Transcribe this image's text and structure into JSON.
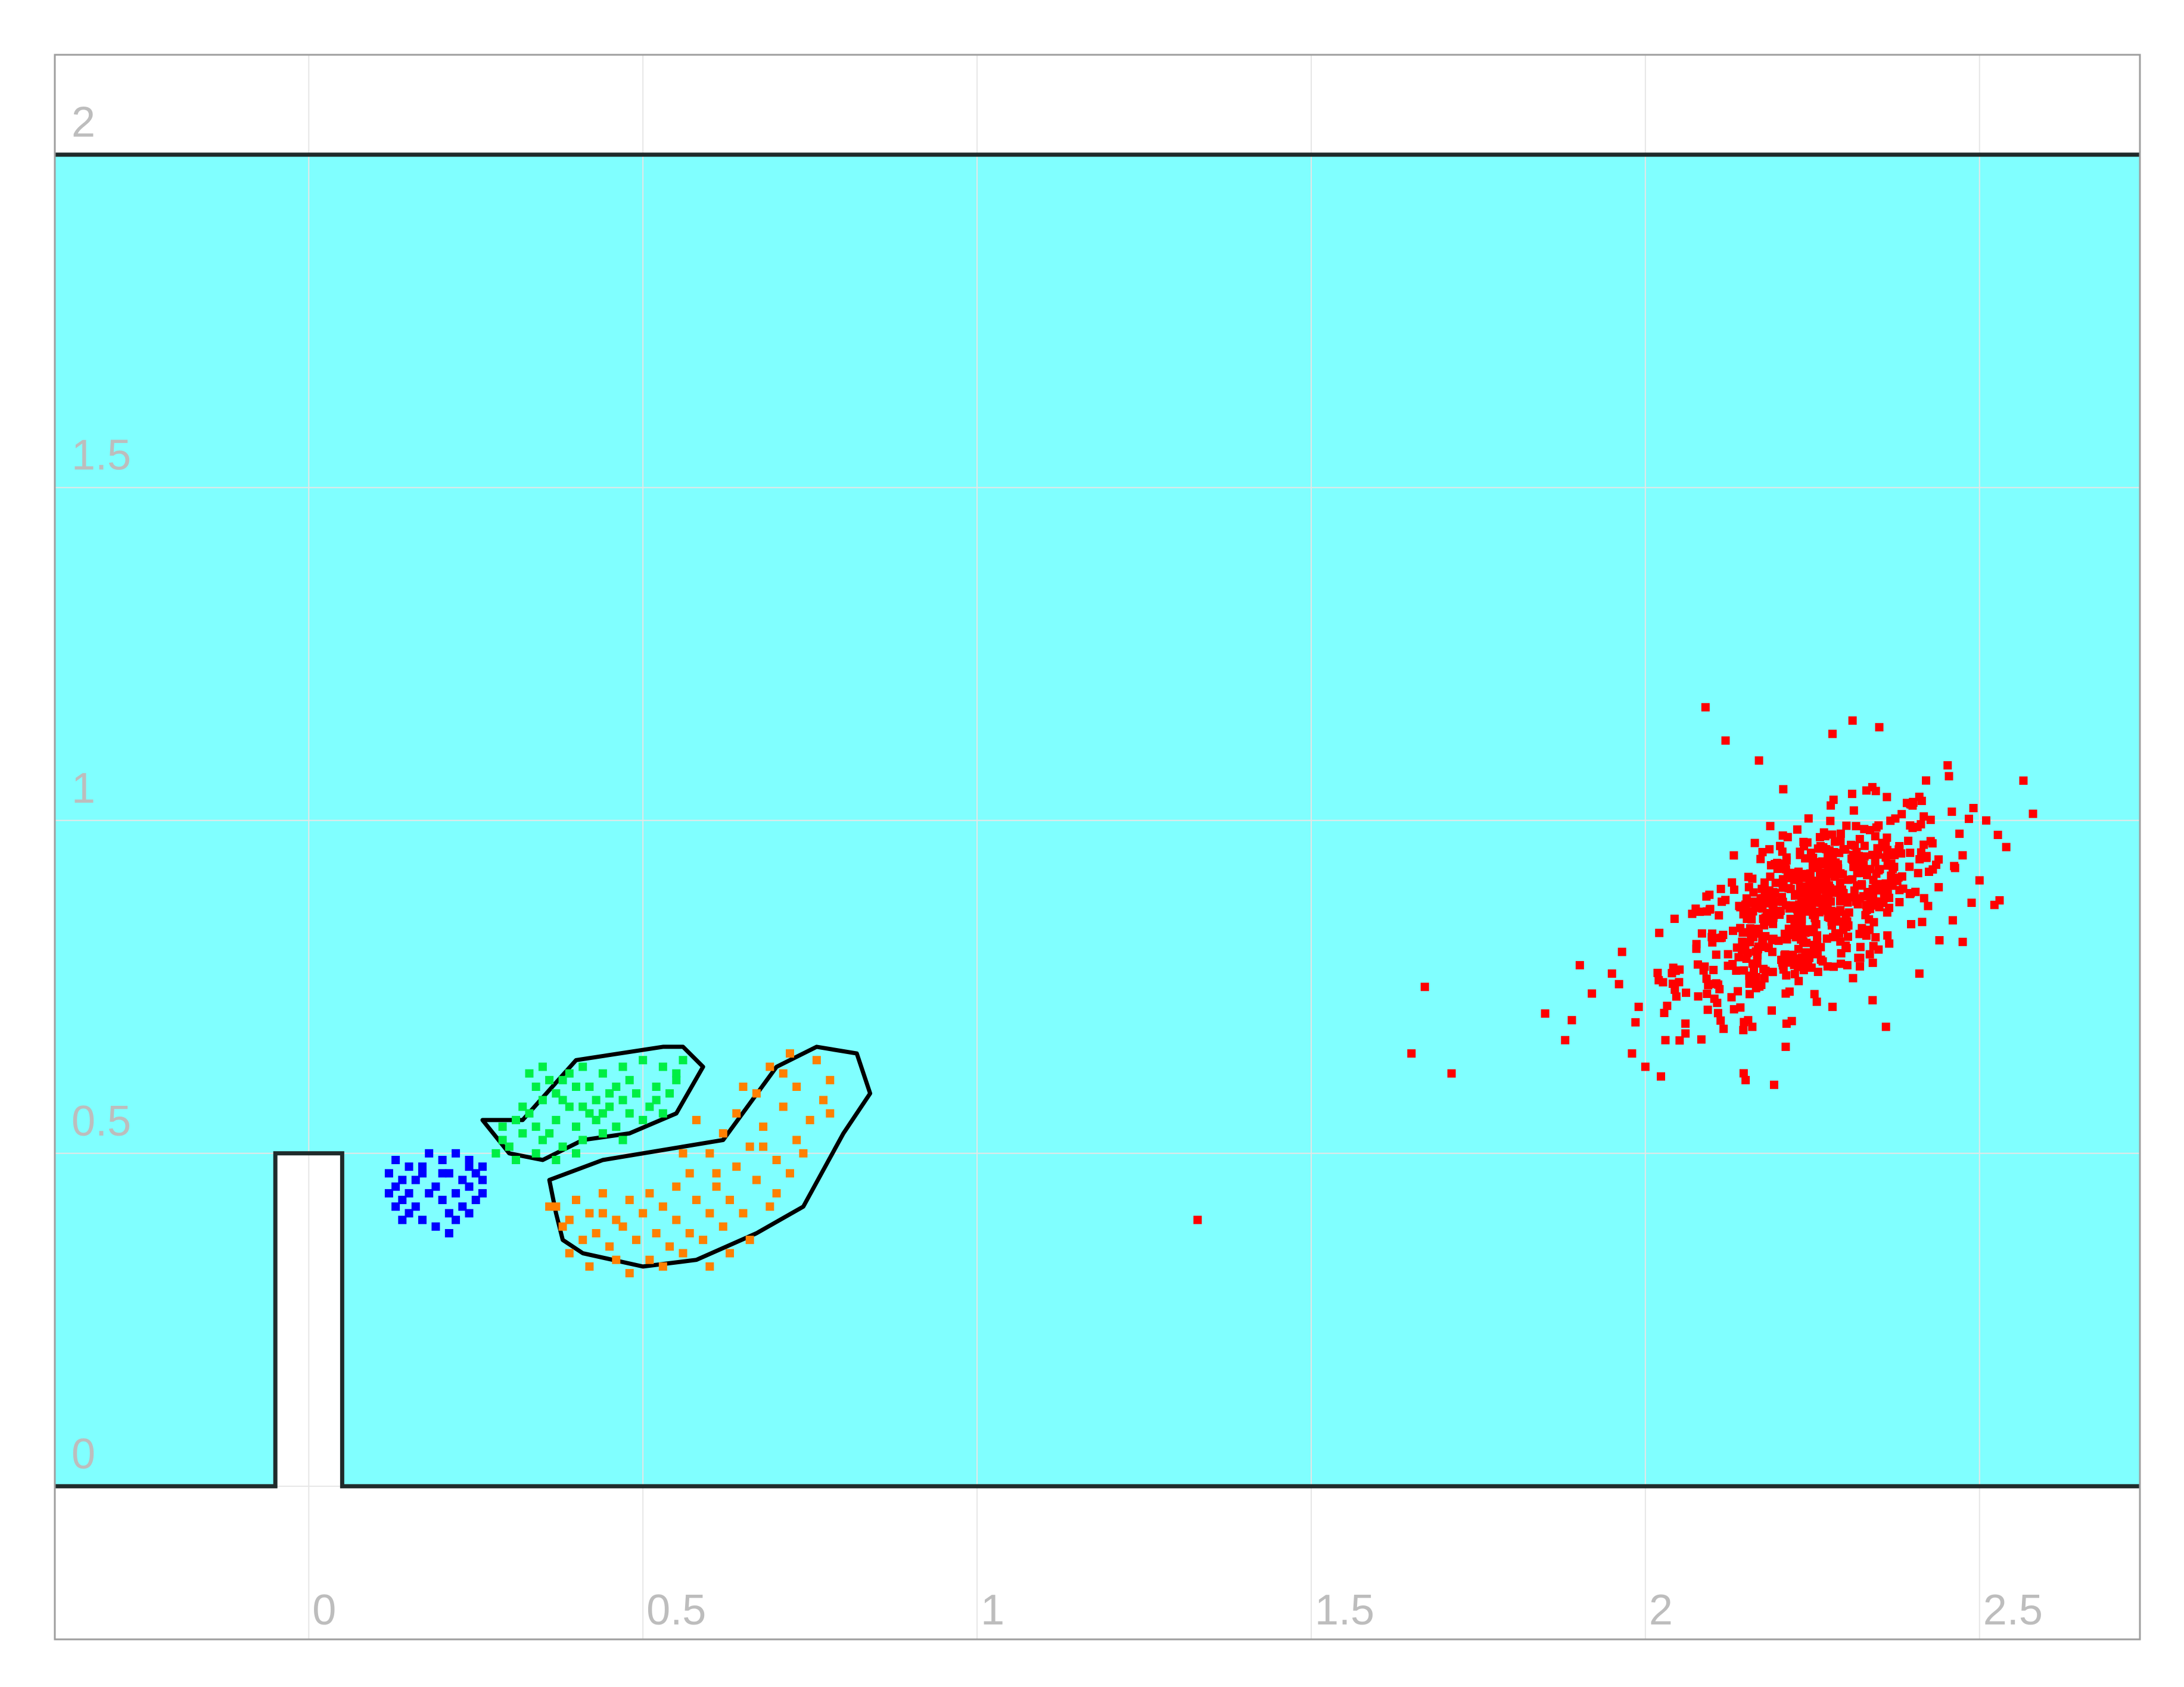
{
  "chart_data": {
    "type": "scatter",
    "title": "",
    "xlabel": "",
    "ylabel": "",
    "xlim": [
      -0.38,
      2.74
    ],
    "ylim": [
      -0.23,
      2.15
    ],
    "grid": true,
    "x_ticks": [
      0,
      0.5,
      1,
      1.5,
      2,
      2.5
    ],
    "x_tick_labels": [
      "0",
      "0.5",
      "1",
      "1.5",
      "2",
      "2.5"
    ],
    "y_ticks": [
      0,
      0.5,
      1,
      1.5,
      2
    ],
    "y_tick_labels": [
      "0",
      "0.5",
      "1",
      "1.5",
      "2"
    ],
    "domain": {
      "x": [
        -0.38,
        2.74
      ],
      "y": [
        0,
        2
      ],
      "fill_color": "#80ffff"
    },
    "obstacle": {
      "x": [
        -0.05,
        0.05
      ],
      "y": [
        0,
        0.5
      ],
      "fill_color": "#ffffff"
    },
    "series": [
      {
        "color": "#0000ff",
        "marker": "square",
        "points": [
          [
            0.13,
            0.49
          ],
          [
            0.15,
            0.48
          ],
          [
            0.18,
            0.5
          ],
          [
            0.2,
            0.49
          ],
          [
            0.22,
            0.5
          ],
          [
            0.24,
            0.49
          ],
          [
            0.26,
            0.48
          ],
          [
            0.12,
            0.47
          ],
          [
            0.14,
            0.46
          ],
          [
            0.17,
            0.47
          ],
          [
            0.21,
            0.47
          ],
          [
            0.23,
            0.46
          ],
          [
            0.25,
            0.47
          ],
          [
            0.13,
            0.45
          ],
          [
            0.15,
            0.44
          ],
          [
            0.19,
            0.45
          ],
          [
            0.22,
            0.44
          ],
          [
            0.24,
            0.45
          ],
          [
            0.26,
            0.44
          ],
          [
            0.14,
            0.43
          ],
          [
            0.16,
            0.42
          ],
          [
            0.2,
            0.43
          ],
          [
            0.23,
            0.42
          ],
          [
            0.25,
            0.43
          ],
          [
            0.15,
            0.41
          ],
          [
            0.17,
            0.4
          ],
          [
            0.21,
            0.41
          ],
          [
            0.24,
            0.41
          ],
          [
            0.13,
            0.42
          ],
          [
            0.19,
            0.39
          ],
          [
            0.22,
            0.4
          ],
          [
            0.16,
            0.46
          ],
          [
            0.18,
            0.44
          ],
          [
            0.12,
            0.44
          ],
          [
            0.26,
            0.46
          ],
          [
            0.21,
            0.38
          ],
          [
            0.14,
            0.4
          ],
          [
            0.24,
            0.48
          ],
          [
            0.17,
            0.48
          ],
          [
            0.2,
            0.47
          ]
        ]
      },
      {
        "color": "#00ee44",
        "marker": "square",
        "points": [
          [
            0.33,
            0.62
          ],
          [
            0.35,
            0.63
          ],
          [
            0.38,
            0.61
          ],
          [
            0.41,
            0.63
          ],
          [
            0.44,
            0.62
          ],
          [
            0.47,
            0.63
          ],
          [
            0.5,
            0.64
          ],
          [
            0.53,
            0.63
          ],
          [
            0.55,
            0.62
          ],
          [
            0.56,
            0.64
          ],
          [
            0.34,
            0.6
          ],
          [
            0.37,
            0.59
          ],
          [
            0.4,
            0.6
          ],
          [
            0.43,
            0.58
          ],
          [
            0.46,
            0.6
          ],
          [
            0.49,
            0.59
          ],
          [
            0.52,
            0.6
          ],
          [
            0.54,
            0.59
          ],
          [
            0.32,
            0.57
          ],
          [
            0.35,
            0.58
          ],
          [
            0.39,
            0.57
          ],
          [
            0.42,
            0.56
          ],
          [
            0.45,
            0.57
          ],
          [
            0.48,
            0.56
          ],
          [
            0.51,
            0.57
          ],
          [
            0.53,
            0.56
          ],
          [
            0.31,
            0.55
          ],
          [
            0.34,
            0.54
          ],
          [
            0.37,
            0.55
          ],
          [
            0.4,
            0.54
          ],
          [
            0.43,
            0.55
          ],
          [
            0.46,
            0.54
          ],
          [
            0.5,
            0.55
          ],
          [
            0.29,
            0.52
          ],
          [
            0.32,
            0.53
          ],
          [
            0.35,
            0.52
          ],
          [
            0.38,
            0.51
          ],
          [
            0.41,
            0.52
          ],
          [
            0.44,
            0.53
          ],
          [
            0.47,
            0.52
          ],
          [
            0.28,
            0.5
          ],
          [
            0.31,
            0.49
          ],
          [
            0.34,
            0.5
          ],
          [
            0.37,
            0.49
          ],
          [
            0.4,
            0.5
          ],
          [
            0.36,
            0.61
          ],
          [
            0.42,
            0.6
          ],
          [
            0.48,
            0.61
          ],
          [
            0.39,
            0.62
          ],
          [
            0.45,
            0.59
          ],
          [
            0.3,
            0.51
          ],
          [
            0.33,
            0.56
          ],
          [
            0.52,
            0.58
          ],
          [
            0.41,
            0.57
          ],
          [
            0.36,
            0.53
          ],
          [
            0.44,
            0.56
          ],
          [
            0.55,
            0.61
          ],
          [
            0.29,
            0.54
          ],
          [
            0.47,
            0.58
          ],
          [
            0.38,
            0.58
          ]
        ]
      },
      {
        "color": "#ff8000",
        "marker": "square",
        "points": [
          [
            0.72,
            0.65
          ],
          [
            0.76,
            0.64
          ],
          [
            0.69,
            0.63
          ],
          [
            0.78,
            0.61
          ],
          [
            0.73,
            0.6
          ],
          [
            0.67,
            0.59
          ],
          [
            0.77,
            0.58
          ],
          [
            0.71,
            0.57
          ],
          [
            0.64,
            0.56
          ],
          [
            0.75,
            0.55
          ],
          [
            0.68,
            0.54
          ],
          [
            0.62,
            0.53
          ],
          [
            0.73,
            0.52
          ],
          [
            0.66,
            0.51
          ],
          [
            0.6,
            0.5
          ],
          [
            0.7,
            0.49
          ],
          [
            0.64,
            0.48
          ],
          [
            0.57,
            0.47
          ],
          [
            0.72,
            0.47
          ],
          [
            0.67,
            0.46
          ],
          [
            0.61,
            0.45
          ],
          [
            0.55,
            0.45
          ],
          [
            0.7,
            0.44
          ],
          [
            0.63,
            0.43
          ],
          [
            0.58,
            0.43
          ],
          [
            0.51,
            0.44
          ],
          [
            0.48,
            0.43
          ],
          [
            0.44,
            0.44
          ],
          [
            0.4,
            0.43
          ],
          [
            0.37,
            0.42
          ],
          [
            0.69,
            0.42
          ],
          [
            0.65,
            0.41
          ],
          [
            0.6,
            0.41
          ],
          [
            0.55,
            0.4
          ],
          [
            0.5,
            0.41
          ],
          [
            0.46,
            0.4
          ],
          [
            0.42,
            0.41
          ],
          [
            0.39,
            0.4
          ],
          [
            0.62,
            0.39
          ],
          [
            0.57,
            0.38
          ],
          [
            0.52,
            0.38
          ],
          [
            0.47,
            0.39
          ],
          [
            0.43,
            0.38
          ],
          [
            0.38,
            0.39
          ],
          [
            0.59,
            0.37
          ],
          [
            0.54,
            0.36
          ],
          [
            0.49,
            0.37
          ],
          [
            0.45,
            0.36
          ],
          [
            0.41,
            0.37
          ],
          [
            0.63,
            0.35
          ],
          [
            0.56,
            0.35
          ],
          [
            0.51,
            0.34
          ],
          [
            0.46,
            0.34
          ],
          [
            0.42,
            0.33
          ],
          [
            0.6,
            0.33
          ],
          [
            0.53,
            0.33
          ],
          [
            0.48,
            0.32
          ],
          [
            0.66,
            0.37
          ],
          [
            0.74,
            0.5
          ],
          [
            0.78,
            0.56
          ],
          [
            0.58,
            0.55
          ],
          [
            0.61,
            0.47
          ],
          [
            0.53,
            0.42
          ],
          [
            0.44,
            0.41
          ],
          [
            0.68,
            0.51
          ],
          [
            0.36,
            0.42
          ],
          [
            0.39,
            0.35
          ],
          [
            0.65,
            0.6
          ],
          [
            0.71,
            0.62
          ],
          [
            0.56,
            0.5
          ]
        ]
      },
      {
        "color": "#ff0000",
        "marker": "square",
        "center": [
          2.25,
          0.87
        ],
        "spread": [
          0.1,
          0.075
        ],
        "count": 650,
        "points": [
          [
            2.09,
            1.17
          ],
          [
            2.12,
            1.12
          ],
          [
            2.31,
            1.15
          ],
          [
            2.35,
            1.14
          ],
          [
            2.28,
            1.13
          ],
          [
            2.17,
            1.09
          ],
          [
            2.42,
            1.06
          ],
          [
            2.58,
            1.01
          ],
          [
            2.51,
            1.0
          ],
          [
            2.47,
            0.98
          ],
          [
            2.54,
            0.96
          ],
          [
            2.5,
            0.91
          ],
          [
            2.53,
            0.88
          ],
          [
            2.46,
            0.85
          ],
          [
            2.44,
            0.82
          ],
          [
            2.41,
            0.77
          ],
          [
            2.34,
            0.73
          ],
          [
            2.28,
            0.72
          ],
          [
            2.21,
            0.74
          ],
          [
            2.16,
            0.69
          ],
          [
            1.95,
            0.77
          ],
          [
            1.92,
            0.74
          ],
          [
            1.89,
            0.7
          ],
          [
            1.85,
            0.71
          ],
          [
            1.88,
            0.67
          ],
          [
            1.67,
            0.75
          ],
          [
            1.65,
            0.65
          ],
          [
            1.71,
            0.62
          ],
          [
            1.98,
            0.65
          ],
          [
            2.0,
            0.63
          ],
          [
            2.03,
            0.67
          ],
          [
            2.06,
            0.68
          ],
          [
            2.15,
            0.61
          ],
          [
            1.99,
            0.72
          ],
          [
            2.02,
            0.76
          ],
          [
            1.33,
            0.4
          ],
          [
            2.21,
            0.66
          ],
          [
            2.36,
            0.69
          ],
          [
            2.23,
            0.78
          ],
          [
            2.1,
            0.83
          ]
        ]
      }
    ],
    "hulls": [
      {
        "name_hint": "",
        "vertices": [
          [
            0.32,
            0.55
          ],
          [
            0.4,
            0.64
          ],
          [
            0.53,
            0.66
          ],
          [
            0.56,
            0.66
          ],
          [
            0.59,
            0.63
          ],
          [
            0.55,
            0.56
          ],
          [
            0.48,
            0.53
          ],
          [
            0.41,
            0.52
          ],
          [
            0.35,
            0.49
          ],
          [
            0.3,
            0.5
          ],
          [
            0.26,
            0.55
          ]
        ]
      },
      {
        "name_hint": "",
        "vertices": [
          [
            0.36,
            0.46
          ],
          [
            0.44,
            0.49
          ],
          [
            0.62,
            0.52
          ],
          [
            0.7,
            0.63
          ],
          [
            0.76,
            0.66
          ],
          [
            0.82,
            0.65
          ],
          [
            0.84,
            0.59
          ],
          [
            0.8,
            0.53
          ],
          [
            0.74,
            0.42
          ],
          [
            0.67,
            0.38
          ],
          [
            0.58,
            0.34
          ],
          [
            0.5,
            0.33
          ],
          [
            0.41,
            0.35
          ],
          [
            0.38,
            0.37
          ],
          [
            0.37,
            0.41
          ]
        ]
      }
    ]
  }
}
